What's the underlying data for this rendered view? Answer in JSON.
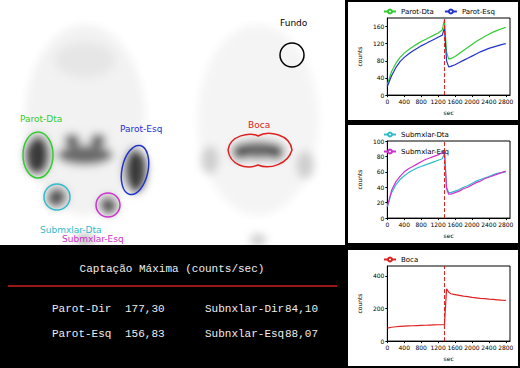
{
  "images": {
    "rois": [
      {
        "label": "Parot-Dta",
        "color": "#33cc33"
      },
      {
        "label": "Parot-Esq",
        "color": "#2233cc"
      },
      {
        "label": "Submxlar-Dta",
        "color": "#33bbcc"
      },
      {
        "label": "Submxlar-Esq",
        "color": "#cc33cc"
      },
      {
        "label": "Boca",
        "color": "#dd2222"
      },
      {
        "label": "Fundo",
        "color": "#000000"
      }
    ]
  },
  "table": {
    "title": "Captação Máxima (counts/sec)",
    "rows": [
      [
        {
          "label": "Parot-Dir",
          "value": "177,30"
        },
        {
          "label": "Subnxlar-Dir",
          "value": "84,10"
        }
      ],
      [
        {
          "label": "Parot-Esq",
          "value": "156,83"
        },
        {
          "label": "Subnxlar-Esq",
          "value": "88,07"
        }
      ]
    ]
  },
  "chart_data": [
    {
      "type": "line",
      "x_label": "sec",
      "y_label": "counts",
      "x": [
        0,
        100,
        200,
        300,
        400,
        500,
        600,
        700,
        800,
        900,
        1000,
        1100,
        1200,
        1300,
        1350,
        1400,
        1450,
        1500,
        1600,
        1700,
        1800,
        1900,
        2000,
        2100,
        2200,
        2300,
        2400,
        2500,
        2600,
        2700,
        2800
      ],
      "series": [
        {
          "name": "Parot-Dta",
          "color": "#33cc33",
          "values": [
            25,
            55,
            74,
            88,
            98,
            106,
            113,
            119,
            125,
            130,
            135,
            140,
            145,
            152,
            176,
            100,
            84,
            85,
            90,
            97,
            104,
            111,
            118,
            125,
            131,
            137,
            142,
            147,
            151,
            155,
            158
          ]
        },
        {
          "name": "Parot-Esq",
          "color": "#2233cc",
          "values": [
            20,
            45,
            64,
            78,
            88,
            96,
            103,
            109,
            115,
            120,
            125,
            130,
            135,
            140,
            157,
            80,
            66,
            67,
            71,
            76,
            81,
            86,
            91,
            96,
            101,
            105,
            109,
            112,
            115,
            118,
            120
          ]
        }
      ],
      "marker_x": [
        1350
      ],
      "xlim": [
        0,
        2900
      ],
      "xticks": [
        0,
        400,
        800,
        1200,
        1600,
        2000,
        2400,
        2800
      ],
      "ylim": [
        0,
        180
      ],
      "yticks": [
        0,
        40,
        80,
        120,
        160
      ],
      "grid": false,
      "legend": "top-left"
    },
    {
      "type": "line",
      "x_label": "sec",
      "y_label": "counts",
      "x": [
        0,
        100,
        200,
        300,
        400,
        500,
        600,
        700,
        800,
        900,
        1000,
        1100,
        1200,
        1300,
        1350,
        1400,
        1450,
        1500,
        1600,
        1700,
        1800,
        1900,
        2000,
        2100,
        2200,
        2300,
        2400,
        2500,
        2600,
        2700,
        2800
      ],
      "series": [
        {
          "name": "Submxlar-Dta",
          "color": "#33bbcc",
          "values": [
            15,
            33,
            43,
            50,
            55,
            59,
            62,
            65,
            67,
            69,
            71,
            73,
            75,
            77,
            84,
            40,
            33,
            33,
            35,
            37,
            40,
            42,
            45,
            48,
            50,
            52,
            54,
            56,
            58,
            59,
            60
          ]
        },
        {
          "name": "Submxlar-Esq",
          "color": "#cc33cc",
          "values": [
            15,
            36,
            47,
            54,
            60,
            64,
            67,
            70,
            73,
            76,
            78,
            80,
            82,
            85,
            88,
            38,
            31,
            31,
            33,
            35,
            38,
            40,
            43,
            46,
            48,
            51,
            53,
            55,
            57,
            59,
            61
          ]
        }
      ],
      "marker_x": [
        1350
      ],
      "xlim": [
        0,
        2900
      ],
      "xticks": [
        0,
        400,
        800,
        1200,
        1600,
        2000,
        2400,
        2800
      ],
      "ylim": [
        0,
        100
      ],
      "yticks": [
        0,
        20,
        40,
        60,
        80,
        100
      ],
      "grid": false,
      "legend": "top-left"
    },
    {
      "type": "line",
      "x_label": "sec",
      "y_label": "counts",
      "x": [
        0,
        100,
        200,
        300,
        400,
        500,
        600,
        700,
        800,
        900,
        1000,
        1100,
        1200,
        1300,
        1350,
        1400,
        1450,
        1500,
        1600,
        1700,
        1800,
        1900,
        2000,
        2100,
        2200,
        2300,
        2400,
        2500,
        2600,
        2700,
        2800
      ],
      "series": [
        {
          "name": "Boca",
          "color": "#dd2222",
          "values": [
            80,
            85,
            88,
            90,
            92,
            93,
            94,
            95,
            96,
            97,
            98,
            99,
            100,
            100,
            101,
            320,
            300,
            290,
            285,
            280,
            275,
            272,
            268,
            265,
            262,
            260,
            257,
            255,
            253,
            251,
            250
          ]
        }
      ],
      "marker_x": [
        1350
      ],
      "xlim": [
        0,
        2900
      ],
      "xticks": [
        0,
        400,
        800,
        1200,
        1600,
        2000,
        2400,
        2800
      ],
      "ylim": [
        0,
        460
      ],
      "yticks": [
        0,
        200,
        400
      ],
      "grid": false,
      "legend": "top-left"
    }
  ]
}
